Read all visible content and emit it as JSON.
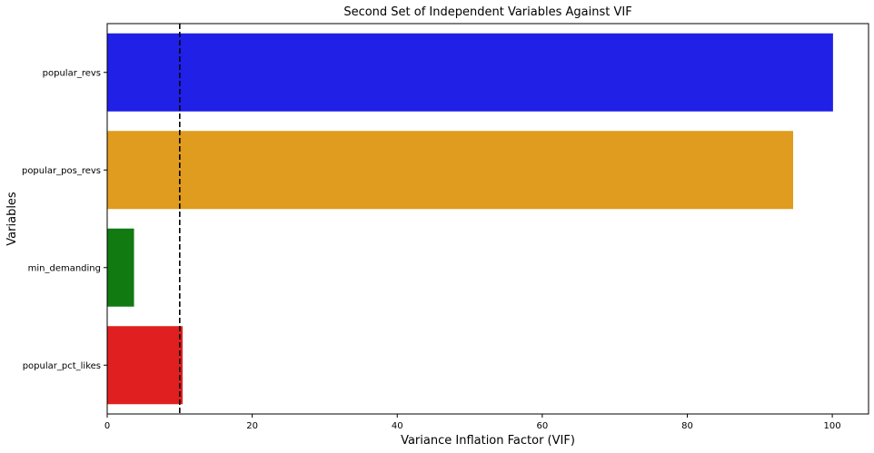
{
  "chart_data": {
    "type": "bar",
    "orientation": "horizontal",
    "title": "Second Set of Independent Variables Against VIF",
    "xlabel": "Variance Inflation Factor (VIF)",
    "ylabel": "Variables",
    "xlim": [
      0,
      105
    ],
    "xticks": [
      0,
      20,
      40,
      60,
      80,
      100
    ],
    "categories": [
      "popular_revs",
      "popular_pos_revs",
      "min_demanding",
      "popular_pct_likes"
    ],
    "values": [
      100.1,
      94.6,
      3.7,
      10.4
    ],
    "colors": [
      "#2020e6",
      "#e09c1e",
      "#117a11",
      "#e02020"
    ],
    "reference_line": {
      "x": 10,
      "style": "dashed",
      "color": "#000000"
    },
    "grid": false,
    "legend": "none"
  }
}
